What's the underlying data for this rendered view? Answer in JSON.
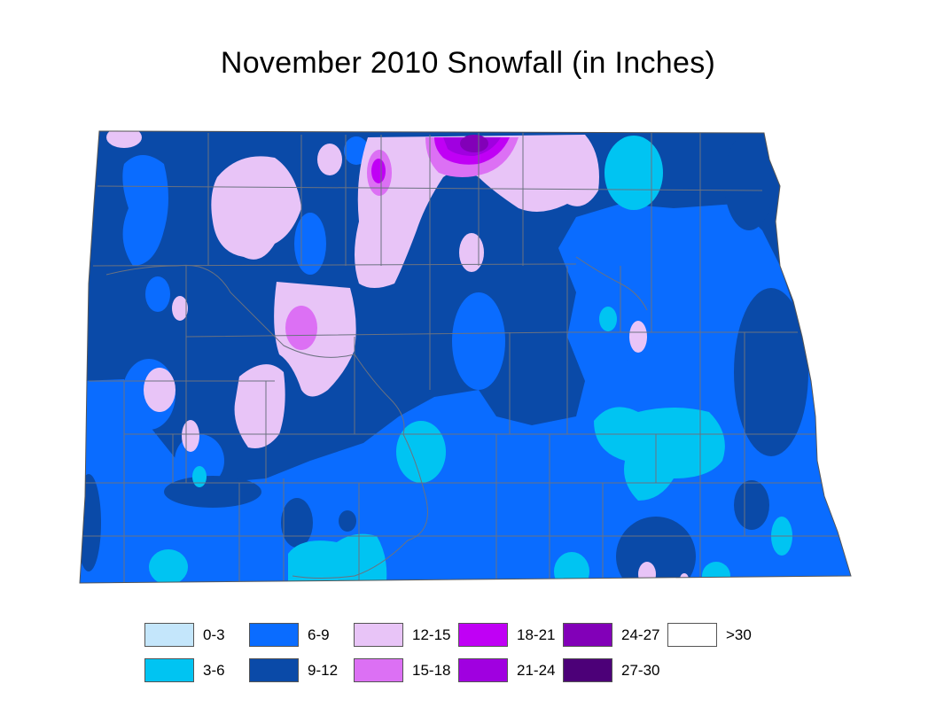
{
  "title": "November 2010 Snowfall (in Inches)",
  "map": {
    "subject": "North Dakota",
    "colors": {
      "background": "#ffffff",
      "county_line": "#6b7280"
    }
  },
  "legend": {
    "items": [
      {
        "label": "0-3",
        "color": "#c4e6fb"
      },
      {
        "label": "6-9",
        "color": "#0a6cff"
      },
      {
        "label": "12-15",
        "color": "#e8c4f7"
      },
      {
        "label": "18-21",
        "color": "#c000f5"
      },
      {
        "label": "24-27",
        "color": "#8200b8"
      },
      {
        "label": ">30",
        "color": "#ffffff"
      },
      {
        "label": "3-6",
        "color": "#00c4f2"
      },
      {
        "label": "9-12",
        "color": "#0a4aa8"
      },
      {
        "label": "15-18",
        "color": "#dc70f4"
      },
      {
        "label": "21-24",
        "color": "#a000e0"
      },
      {
        "label": "27-30",
        "color": "#4c0078"
      }
    ]
  }
}
